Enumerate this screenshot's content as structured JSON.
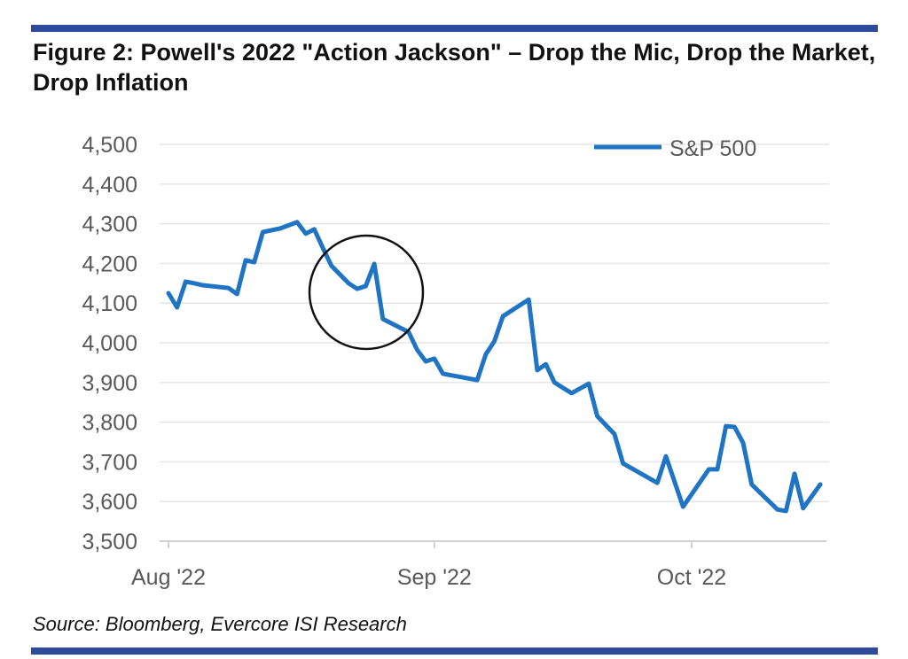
{
  "title": "Figure 2: Powell's 2022 \"Action Jackson\" – Drop the Mic, Drop the Market, Drop Inflation",
  "source": "Source: Bloomberg, Evercore ISI Research",
  "colors": {
    "rule": "#2e4b9e",
    "line": "#1f74c4",
    "grid": "#e6e6e6",
    "annotation_circle": "#111111"
  },
  "chart_data": {
    "type": "line",
    "title": "Figure 2: Powell's 2022 \"Action Jackson\" – Drop the Mic, Drop the Market, Drop Inflation",
    "xlabel": "",
    "ylabel": "",
    "ylim": [
      3500,
      4500
    ],
    "yticks": [
      3500,
      3600,
      3700,
      3800,
      3900,
      4000,
      4100,
      4200,
      4300,
      4400,
      4500
    ],
    "ytick_labels": [
      "3,500",
      "3,600",
      "3,700",
      "3,800",
      "3,900",
      "4,000",
      "4,100",
      "4,200",
      "4,300",
      "4,400",
      "4,500"
    ],
    "xticks": [
      "2022-08-01",
      "2022-09-01",
      "2022-10-01"
    ],
    "xtick_labels": [
      "Aug '22",
      "Sep '22",
      "Oct '22"
    ],
    "xlim": [
      "2022-08-01",
      "2022-10-16"
    ],
    "grid": true,
    "legend": "top-right",
    "annotation": "circle around late-August peak and drop (Jackson Hole)",
    "series": [
      {
        "name": "S&P 500",
        "x": [
          "2022-08-01",
          "2022-08-02",
          "2022-08-03",
          "2022-08-04",
          "2022-08-05",
          "2022-08-08",
          "2022-08-09",
          "2022-08-10",
          "2022-08-11",
          "2022-08-12",
          "2022-08-14",
          "2022-08-16",
          "2022-08-17",
          "2022-08-18",
          "2022-08-19",
          "2022-08-20",
          "2022-08-22",
          "2022-08-23",
          "2022-08-24",
          "2022-08-25",
          "2022-08-26",
          "2022-08-29",
          "2022-08-30",
          "2022-08-31",
          "2022-09-01",
          "2022-09-02",
          "2022-09-06",
          "2022-09-07",
          "2022-09-08",
          "2022-09-09",
          "2022-09-12",
          "2022-09-13",
          "2022-09-14",
          "2022-09-15",
          "2022-09-17",
          "2022-09-19",
          "2022-09-20",
          "2022-09-22",
          "2022-09-23",
          "2022-09-27",
          "2022-09-28",
          "2022-09-30",
          "2022-10-03",
          "2022-10-04",
          "2022-10-05",
          "2022-10-06",
          "2022-10-07",
          "2022-10-08",
          "2022-10-11",
          "2022-10-12",
          "2022-10-13",
          "2022-10-14",
          "2022-10-16"
        ],
        "values": [
          4125,
          4089,
          4154,
          4150,
          4145,
          4138,
          4123,
          4208,
          4203,
          4279,
          4288,
          4304,
          4275,
          4286,
          4239,
          4194,
          4150,
          4136,
          4143,
          4199,
          4060,
          4027,
          3982,
          3953,
          3960,
          3922,
          3906,
          3971,
          4004,
          4067,
          4109,
          3931,
          3946,
          3900,
          3873,
          3897,
          3815,
          3770,
          3696,
          3647,
          3714,
          3587,
          3681,
          3681,
          3790,
          3788,
          3748,
          3643,
          3580,
          3576,
          3670,
          3583,
          3643
        ]
      }
    ]
  }
}
